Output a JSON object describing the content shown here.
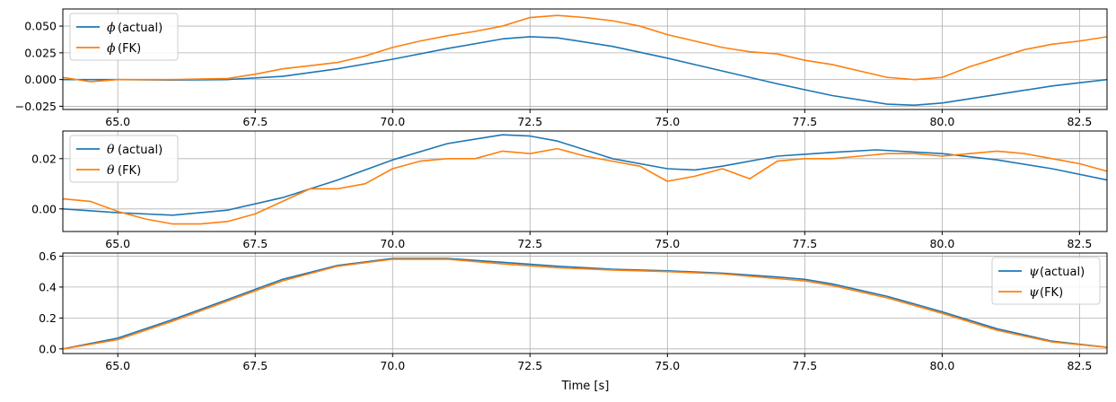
{
  "colors": {
    "actual": "#1f77b4",
    "fk": "#ff7f0e",
    "grid": "#b0b0b0",
    "frame": "#000000",
    "legend_border": "#cccccc"
  },
  "chart_data": [
    {
      "type": "line",
      "xlim": [
        64,
        83
      ],
      "ylim": [
        -0.028,
        0.066
      ],
      "x_ticks": [
        65.0,
        67.5,
        70.0,
        72.5,
        75.0,
        77.5,
        80.0,
        82.5
      ],
      "x_tick_labels": [
        "65.0",
        "67.5",
        "70.0",
        "72.5",
        "75.0",
        "77.5",
        "80.0",
        "82.5"
      ],
      "y_ticks": [
        -0.025,
        0.0,
        0.025,
        0.05
      ],
      "y_tick_labels": [
        "−0.025",
        "0.000",
        "0.025",
        "0.050"
      ],
      "grid": true,
      "legend_position": "upper-left",
      "xlabel": "",
      "ylabel": "",
      "series": [
        {
          "name": "(actual)",
          "symbol": "ϕ",
          "color": "#1f77b4",
          "x": [
            64,
            65,
            66,
            67,
            68,
            69,
            70,
            71,
            72,
            72.5,
            73,
            74,
            75,
            76,
            77,
            78,
            79,
            79.5,
            80,
            81,
            82,
            83
          ],
          "y": [
            0.0,
            0.0,
            -0.0005,
            0.0,
            0.003,
            0.01,
            0.019,
            0.029,
            0.038,
            0.04,
            0.039,
            0.031,
            0.02,
            0.008,
            -0.004,
            -0.015,
            -0.023,
            -0.024,
            -0.022,
            -0.014,
            -0.006,
            0.0
          ]
        },
        {
          "name": "(FK)",
          "symbol": "ϕ",
          "color": "#ff7f0e",
          "x": [
            64,
            64.5,
            65,
            66,
            67,
            67.5,
            68,
            68.5,
            69,
            69.5,
            70,
            70.5,
            71,
            71.5,
            72,
            72.5,
            73,
            73.5,
            74,
            74.5,
            75,
            75.5,
            76,
            76.5,
            77,
            77.5,
            78,
            78.5,
            79,
            79.5,
            80,
            80.5,
            81,
            81.5,
            82,
            82.5,
            83
          ],
          "y": [
            0.002,
            -0.002,
            0.0,
            0.0,
            0.001,
            0.005,
            0.01,
            0.013,
            0.016,
            0.022,
            0.03,
            0.036,
            0.041,
            0.045,
            0.05,
            0.058,
            0.06,
            0.058,
            0.055,
            0.05,
            0.042,
            0.036,
            0.03,
            0.026,
            0.024,
            0.018,
            0.014,
            0.008,
            0.002,
            0.0,
            0.002,
            0.012,
            0.02,
            0.028,
            0.033,
            0.036,
            0.04
          ]
        }
      ]
    },
    {
      "type": "line",
      "xlim": [
        64,
        83
      ],
      "ylim": [
        -0.009,
        0.031
      ],
      "x_ticks": [
        65.0,
        67.5,
        70.0,
        72.5,
        75.0,
        77.5,
        80.0,
        82.5
      ],
      "x_tick_labels": [
        "65.0",
        "67.5",
        "70.0",
        "72.5",
        "75.0",
        "77.5",
        "80.0",
        "82.5"
      ],
      "y_ticks": [
        0.0,
        0.02
      ],
      "y_tick_labels": [
        "0.00",
        "0.02"
      ],
      "grid": true,
      "legend_position": "upper-left",
      "xlabel": "",
      "ylabel": "",
      "series": [
        {
          "name": "(actual)",
          "symbol": "θ",
          "color": "#1f77b4",
          "x": [
            64,
            65,
            66,
            67,
            68,
            69,
            70,
            71,
            72,
            72.5,
            73,
            74,
            75,
            75.5,
            76,
            77,
            78,
            78.8,
            80,
            81,
            82,
            83
          ],
          "y": [
            0.0,
            -0.0015,
            -0.0025,
            -0.0005,
            0.0045,
            0.0115,
            0.0195,
            0.026,
            0.0295,
            0.029,
            0.027,
            0.02,
            0.016,
            0.0155,
            0.017,
            0.021,
            0.0225,
            0.0235,
            0.022,
            0.0195,
            0.016,
            0.0115
          ]
        },
        {
          "name": "(FK)",
          "symbol": "θ",
          "color": "#ff7f0e",
          "x": [
            64,
            64.5,
            65,
            65.5,
            66,
            66.5,
            67,
            67.5,
            68,
            68.5,
            69,
            69.5,
            70,
            70.5,
            71,
            71.5,
            72,
            72.5,
            73,
            73.5,
            74,
            74.5,
            75,
            75.5,
            76,
            76.5,
            77,
            77.5,
            78,
            78.5,
            79,
            79.5,
            80,
            80.5,
            81,
            81.5,
            82,
            82.5,
            83
          ],
          "y": [
            0.004,
            0.003,
            -0.001,
            -0.004,
            -0.006,
            -0.006,
            -0.005,
            -0.002,
            0.003,
            0.008,
            0.008,
            0.01,
            0.016,
            0.019,
            0.02,
            0.02,
            0.023,
            0.022,
            0.024,
            0.021,
            0.019,
            0.017,
            0.011,
            0.013,
            0.016,
            0.012,
            0.019,
            0.02,
            0.02,
            0.021,
            0.022,
            0.022,
            0.021,
            0.022,
            0.023,
            0.022,
            0.02,
            0.018,
            0.015
          ]
        }
      ]
    },
    {
      "type": "line",
      "xlim": [
        64,
        83
      ],
      "ylim": [
        -0.03,
        0.62
      ],
      "x_ticks": [
        65.0,
        67.5,
        70.0,
        72.5,
        75.0,
        77.5,
        80.0,
        82.5
      ],
      "x_tick_labels": [
        "65.0",
        "67.5",
        "70.0",
        "72.5",
        "75.0",
        "77.5",
        "80.0",
        "82.5"
      ],
      "y_ticks": [
        0.0,
        0.2,
        0.4,
        0.6
      ],
      "y_tick_labels": [
        "0.0",
        "0.2",
        "0.4",
        "0.6"
      ],
      "grid": true,
      "legend_position": "upper-right",
      "xlabel": "Time [s]",
      "ylabel": "",
      "series": [
        {
          "name": "(actual)",
          "symbol": "ψ",
          "color": "#1f77b4",
          "x": [
            64,
            65,
            66,
            67,
            68,
            69,
            70,
            71,
            72,
            73,
            74,
            75,
            76,
            77,
            77.5,
            78,
            79,
            80,
            81,
            82,
            83
          ],
          "y": [
            0.0,
            0.07,
            0.19,
            0.32,
            0.45,
            0.54,
            0.585,
            0.585,
            0.56,
            0.535,
            0.515,
            0.505,
            0.49,
            0.465,
            0.45,
            0.42,
            0.34,
            0.24,
            0.13,
            0.05,
            0.01
          ]
        },
        {
          "name": "(FK)",
          "symbol": "ψ",
          "color": "#ff7f0e",
          "x": [
            64,
            65,
            66,
            67,
            68,
            69,
            70,
            71,
            72,
            73,
            74,
            75,
            76,
            77,
            77.5,
            78,
            79,
            80,
            81,
            82,
            83
          ],
          "y": [
            0.0,
            0.06,
            0.18,
            0.31,
            0.44,
            0.535,
            0.58,
            0.58,
            0.55,
            0.525,
            0.51,
            0.5,
            0.485,
            0.455,
            0.44,
            0.41,
            0.33,
            0.23,
            0.12,
            0.045,
            0.01
          ]
        }
      ]
    }
  ]
}
